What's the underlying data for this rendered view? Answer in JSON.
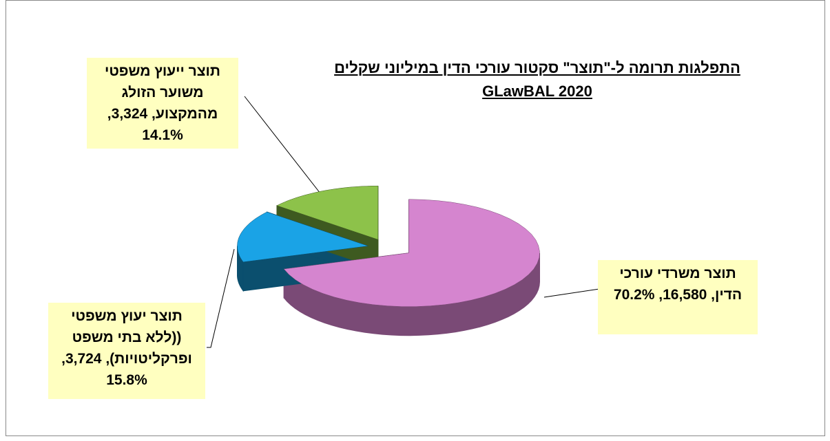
{
  "chart_data": {
    "type": "pie3d",
    "title": "התפלגות תרומה ל-\"תוצר\" סקטור עורכי הדין  במיליוני שקלים",
    "subtitle": "GLawBAL 2020",
    "values": [
      16580,
      3724,
      3324
    ],
    "value_labels": [
      "תוצר משרדי עורכי הדין, 16,580, 70.2%",
      "תוצר יעוץ משפטי ((ללא בתי משפט ופרקליטויות), 3,724, 15.8%",
      "תוצר ייעוץ משפטי משוער הזולג מהמקצוע, 3,324, 14.1%"
    ],
    "colors": [
      "#d585cf",
      "#1aa3e6",
      "#8dc24a"
    ],
    "side_colors": [
      "#7a4a76",
      "#0b4f6e",
      "#3e5a20"
    ]
  }
}
